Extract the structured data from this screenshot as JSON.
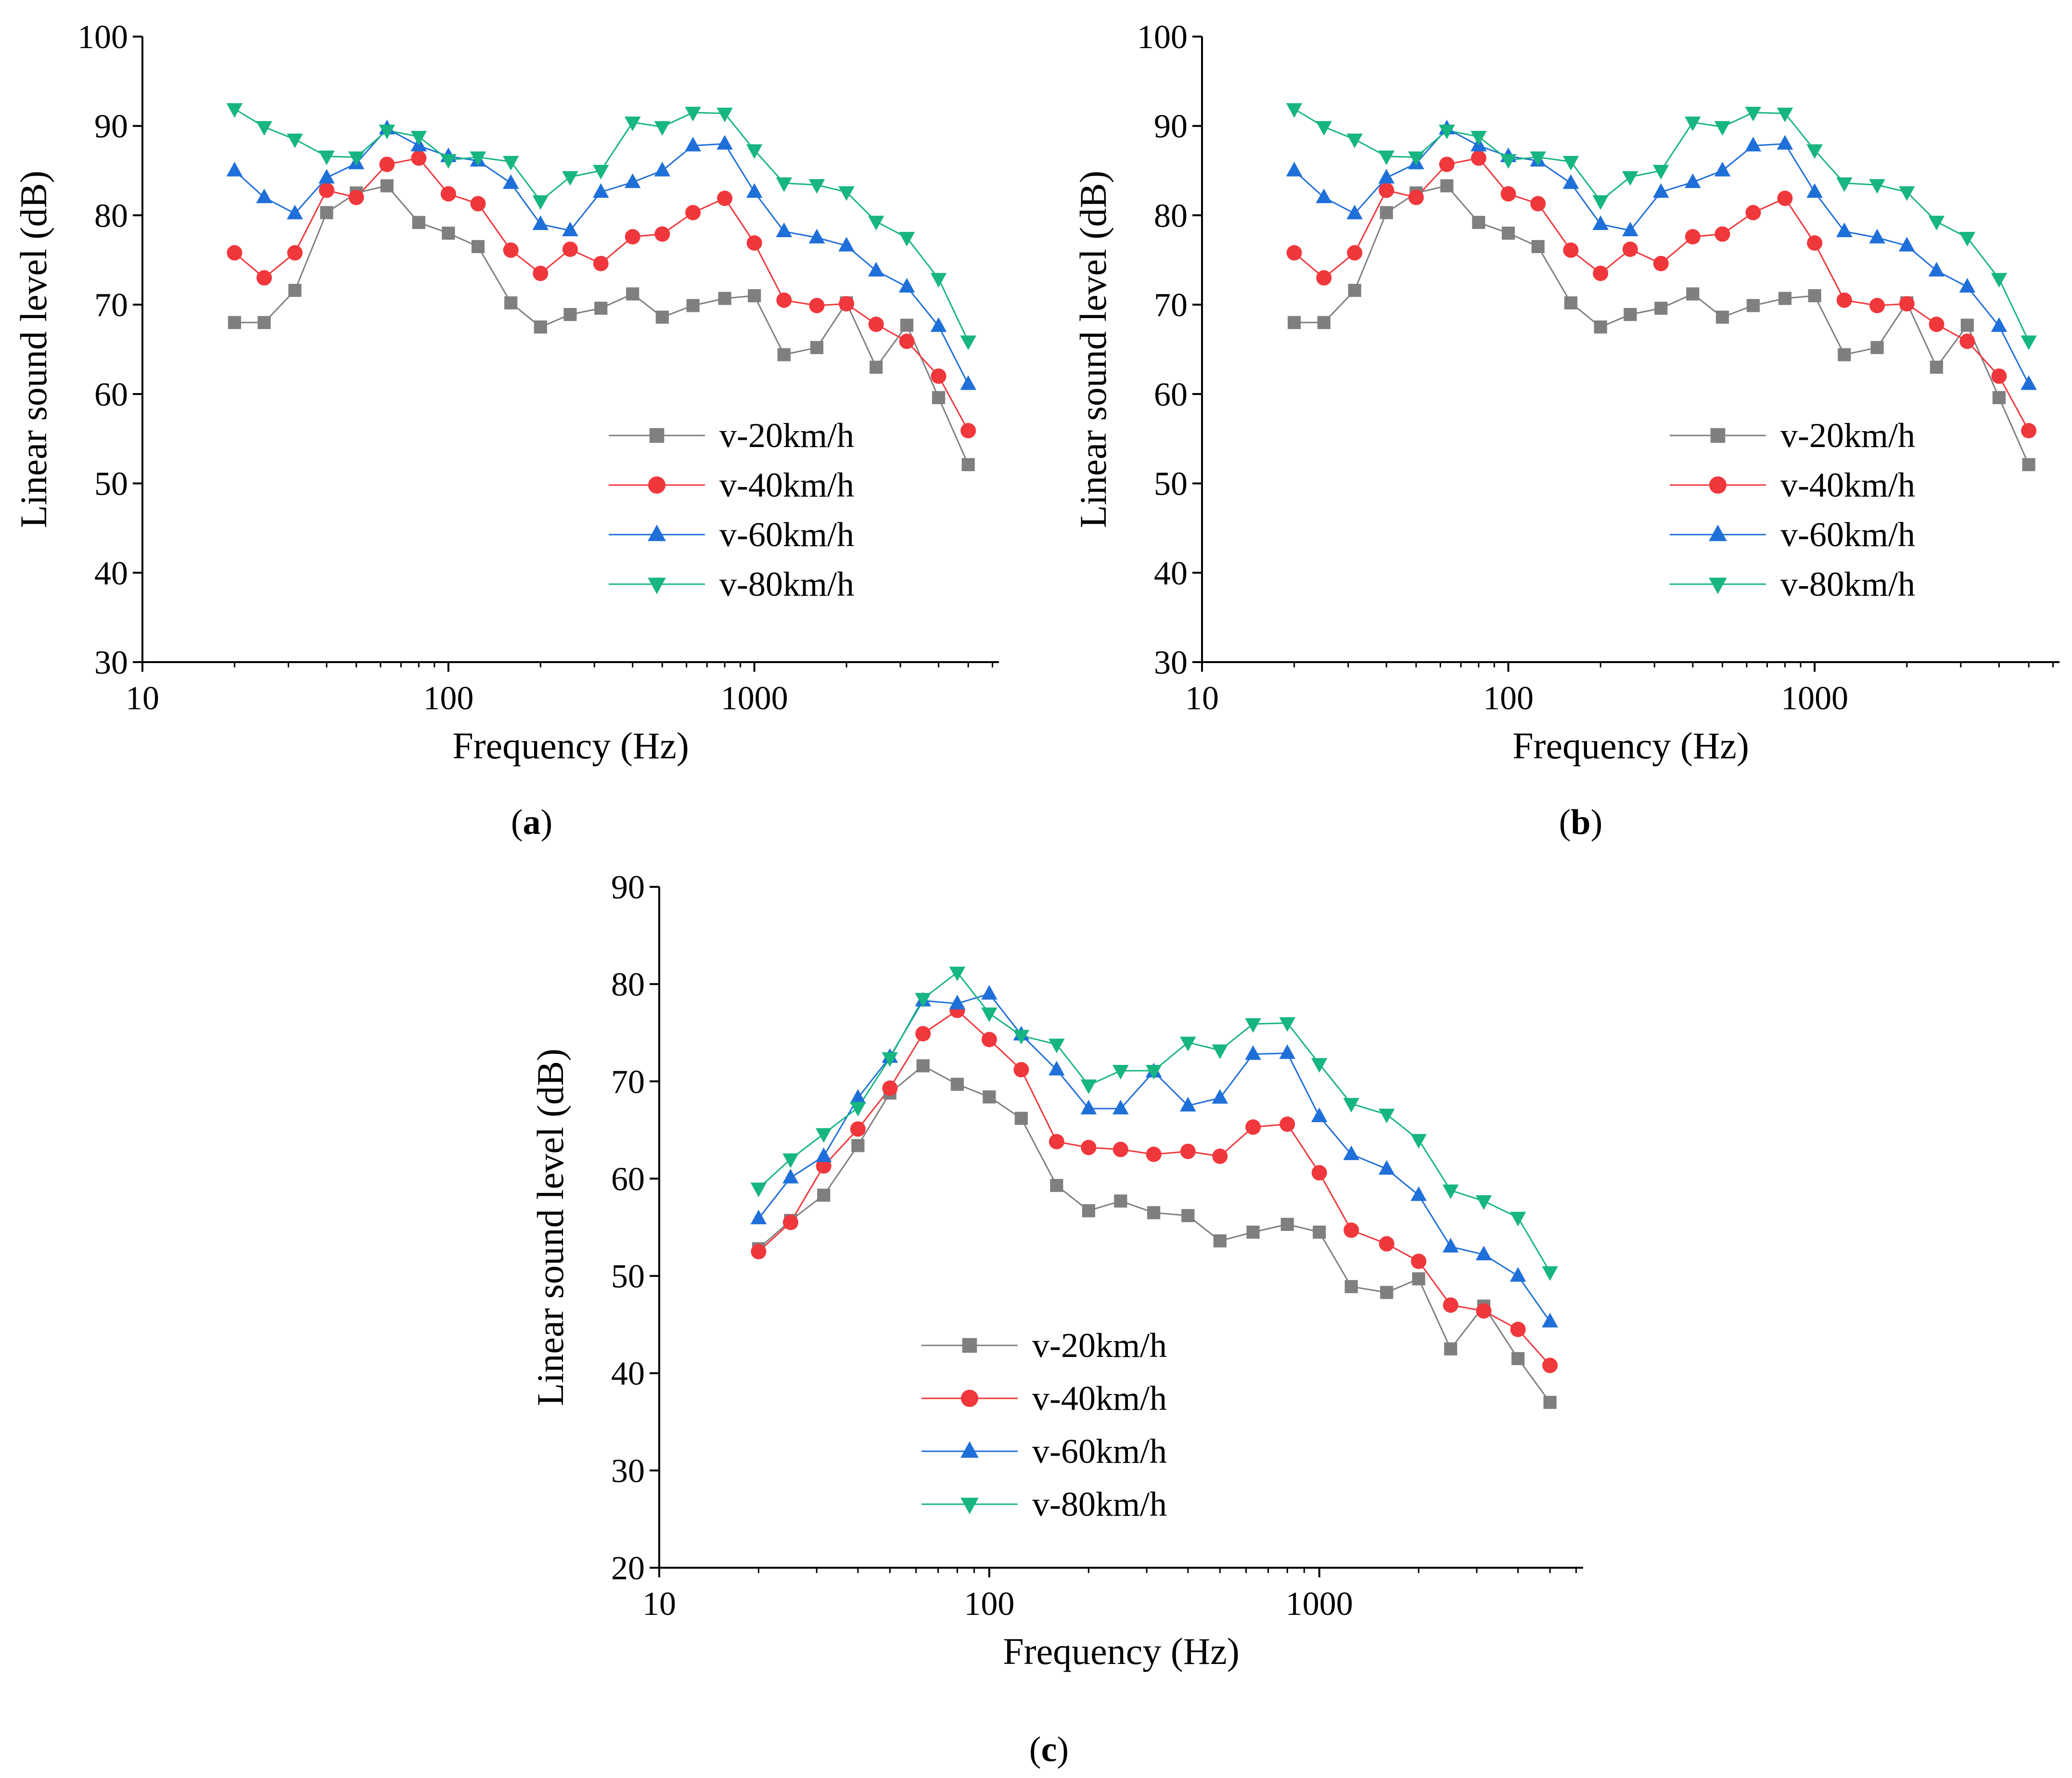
{
  "chart_data": [
    {
      "type": "line",
      "panel": "a",
      "xlabel": "Frequency (Hz)",
      "ylabel": "Linear sound level (dB)",
      "xscale": "log",
      "xlim": [
        10,
        6300
      ],
      "ylim": [
        30,
        100
      ],
      "xticks": [
        10,
        100,
        1000
      ],
      "xtick_labels": [
        "10",
        "100",
        "1000"
      ],
      "yticks": [
        30,
        40,
        50,
        60,
        70,
        80,
        90,
        100
      ],
      "ytick_labels": [
        "30",
        "40",
        "50",
        "60",
        "70",
        "80",
        "90",
        "100"
      ],
      "legend_position": "bottom-right",
      "x": [
        20,
        25,
        31.5,
        40,
        50,
        63,
        80,
        100,
        125,
        160,
        200,
        250,
        315,
        400,
        500,
        630,
        800,
        1000,
        1250,
        1600,
        2000,
        2500,
        3150,
        4000,
        5000
      ],
      "series": [
        {
          "name": "v-20km/h",
          "color": "#7f7f7f",
          "marker": "square",
          "values": [
            68.0,
            68.0,
            71.6,
            80.3,
            82.5,
            83.3,
            79.2,
            78.0,
            76.5,
            70.2,
            67.5,
            68.9,
            69.6,
            71.2,
            68.6,
            69.9,
            70.7,
            71.0,
            64.4,
            65.2,
            70.2,
            63.0,
            67.7,
            59.6,
            52.1
          ]
        },
        {
          "name": "v-40km/h",
          "color": "#f0373c",
          "marker": "circle",
          "values": [
            75.8,
            73.0,
            75.8,
            82.8,
            82.0,
            85.7,
            86.4,
            82.4,
            81.3,
            76.1,
            73.5,
            76.2,
            74.6,
            77.6,
            77.9,
            80.3,
            81.9,
            76.9,
            70.5,
            69.9,
            70.1,
            67.8,
            65.9,
            62.0,
            55.9
          ]
        },
        {
          "name": "v-60km/h",
          "color": "#1f6fd9",
          "marker": "triangle-up",
          "values": [
            85.0,
            82.0,
            80.2,
            84.2,
            85.8,
            89.7,
            87.8,
            86.6,
            86.1,
            83.6,
            79.0,
            78.3,
            82.6,
            83.7,
            85.0,
            87.8,
            88.0,
            82.6,
            78.2,
            77.5,
            76.6,
            73.8,
            72.0,
            67.6,
            61.1
          ]
        },
        {
          "name": "v-80km/h",
          "color": "#17b582",
          "marker": "triangle-down",
          "values": [
            91.9,
            89.9,
            88.5,
            86.6,
            86.5,
            89.5,
            88.8,
            86.2,
            86.5,
            86.0,
            81.6,
            84.3,
            85.0,
            90.4,
            89.9,
            91.5,
            91.4,
            87.3,
            83.6,
            83.4,
            82.6,
            79.3,
            77.5,
            72.9,
            65.9
          ]
        }
      ]
    },
    {
      "type": "line",
      "panel": "b",
      "xlabel": "Frequency (Hz)",
      "ylabel": "Linear sound level (dB)",
      "xscale": "log",
      "xlim": [
        10,
        6300
      ],
      "ylim": [
        30,
        100
      ],
      "xticks": [
        10,
        100,
        1000
      ],
      "xtick_labels": [
        "10",
        "100",
        "1000"
      ],
      "yticks": [
        30,
        40,
        50,
        60,
        70,
        80,
        90,
        100
      ],
      "ytick_labels": [
        "30",
        "40",
        "50",
        "60",
        "70",
        "80",
        "90",
        "100"
      ],
      "legend_position": "bottom-right",
      "x": [
        20,
        25,
        31.5,
        40,
        50,
        63,
        80,
        100,
        125,
        160,
        200,
        250,
        315,
        400,
        500,
        630,
        800,
        1000,
        1250,
        1600,
        2000,
        2500,
        3150,
        4000,
        5000
      ],
      "series": [
        {
          "name": "v-20km/h",
          "color": "#7f7f7f",
          "marker": "square",
          "values": [
            68.0,
            68.0,
            71.6,
            80.3,
            82.5,
            83.3,
            79.2,
            78.0,
            76.5,
            70.2,
            67.5,
            68.9,
            69.6,
            71.2,
            68.6,
            69.9,
            70.7,
            71.0,
            64.4,
            65.2,
            70.2,
            63.0,
            67.7,
            59.6,
            52.1
          ]
        },
        {
          "name": "v-40km/h",
          "color": "#f0373c",
          "marker": "circle",
          "values": [
            75.8,
            73.0,
            75.8,
            82.8,
            82.0,
            85.7,
            86.4,
            82.4,
            81.3,
            76.1,
            73.5,
            76.2,
            74.6,
            77.6,
            77.9,
            80.3,
            81.9,
            76.9,
            70.5,
            69.9,
            70.1,
            67.8,
            65.9,
            62.0,
            55.9
          ]
        },
        {
          "name": "v-60km/h",
          "color": "#1f6fd9",
          "marker": "triangle-up",
          "values": [
            85.0,
            82.0,
            80.2,
            84.2,
            85.8,
            89.7,
            87.8,
            86.6,
            86.1,
            83.6,
            79.0,
            78.3,
            82.6,
            83.7,
            85.0,
            87.8,
            88.0,
            82.6,
            78.2,
            77.5,
            76.6,
            73.8,
            72.0,
            67.6,
            61.1
          ]
        },
        {
          "name": "v-80km/h",
          "color": "#17b582",
          "marker": "triangle-down",
          "values": [
            91.9,
            89.9,
            88.5,
            86.6,
            86.5,
            89.5,
            88.8,
            86.2,
            86.5,
            86.0,
            81.6,
            84.3,
            85.0,
            90.4,
            89.9,
            91.5,
            91.4,
            87.3,
            83.6,
            83.4,
            82.6,
            79.3,
            77.5,
            72.9,
            65.9
          ]
        }
      ]
    },
    {
      "type": "line",
      "panel": "c",
      "xlabel": "Frequency (Hz)",
      "ylabel": "Linear sound level (dB)",
      "xscale": "log",
      "xlim": [
        10,
        6300
      ],
      "ylim": [
        20,
        90
      ],
      "xticks": [
        10,
        100,
        1000
      ],
      "xtick_labels": [
        "10",
        "100",
        "1000"
      ],
      "yticks": [
        20,
        30,
        40,
        50,
        60,
        70,
        80,
        90
      ],
      "ytick_labels": [
        "20",
        "30",
        "40",
        "50",
        "60",
        "70",
        "80",
        "90"
      ],
      "legend_position": "bottom-left",
      "x": [
        20,
        25,
        31.5,
        40,
        50,
        63,
        80,
        100,
        125,
        160,
        200,
        250,
        315,
        400,
        500,
        630,
        800,
        1000,
        1250,
        1600,
        2000,
        2500,
        3150,
        4000,
        5000
      ],
      "series": [
        {
          "name": "v-20km/h",
          "color": "#7f7f7f",
          "marker": "square",
          "values": [
            52.8,
            55.7,
            58.3,
            63.4,
            68.8,
            71.6,
            69.7,
            68.4,
            66.2,
            59.3,
            56.7,
            57.7,
            56.5,
            56.2,
            53.6,
            54.5,
            55.3,
            54.5,
            48.9,
            48.3,
            49.7,
            42.5,
            46.9,
            41.5,
            37.0
          ]
        },
        {
          "name": "v-40km/h",
          "color": "#f0373c",
          "marker": "circle",
          "values": [
            52.5,
            55.5,
            61.3,
            65.1,
            69.3,
            74.9,
            77.3,
            74.3,
            71.2,
            63.8,
            63.2,
            63.0,
            62.5,
            62.8,
            62.3,
            65.3,
            65.6,
            60.6,
            54.7,
            53.3,
            51.5,
            47.0,
            46.4,
            44.5,
            40.8
          ]
        },
        {
          "name": "v-60km/h",
          "color": "#1f6fd9",
          "marker": "triangle-up",
          "values": [
            55.9,
            60.1,
            62.3,
            68.3,
            72.5,
            78.3,
            78.0,
            79.0,
            74.8,
            71.2,
            67.2,
            67.2,
            71.0,
            67.5,
            68.3,
            72.8,
            72.9,
            66.4,
            62.5,
            61.0,
            58.3,
            53.0,
            52.2,
            50.0,
            45.3
          ]
        },
        {
          "name": "v-80km/h",
          "color": "#17b582",
          "marker": "triangle-down",
          "values": [
            59.0,
            62.0,
            64.6,
            67.3,
            72.4,
            78.5,
            81.2,
            77.0,
            74.7,
            73.8,
            69.6,
            71.1,
            71.1,
            74.0,
            73.2,
            75.9,
            76.0,
            71.8,
            67.7,
            66.6,
            64.0,
            58.8,
            57.7,
            56.0,
            50.4
          ]
        }
      ]
    }
  ],
  "panel_captions": [
    {
      "open": "(",
      "letter": "a",
      "close": ")"
    },
    {
      "open": "(",
      "letter": "b",
      "close": ")"
    },
    {
      "open": "(",
      "letter": "c",
      "close": ")"
    }
  ]
}
